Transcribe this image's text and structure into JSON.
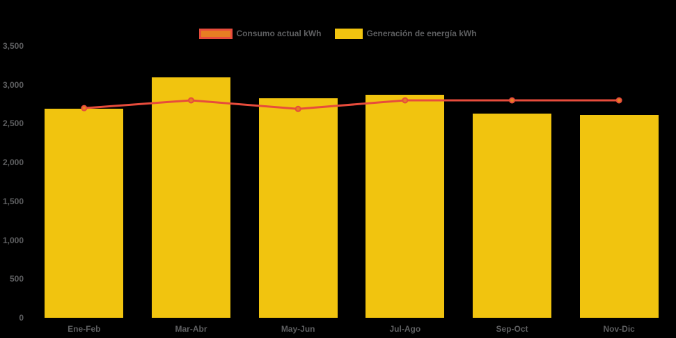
{
  "colors": {
    "background": "#000000",
    "bar": "#F1C40F",
    "line": "#E74C3C",
    "point_fill": "#E67E22",
    "text": "#5E5F61"
  },
  "legend": {
    "items": [
      {
        "label": "Consumo actual kWh",
        "swatch_fill": "#E67E22",
        "swatch_border": "#E74C3C"
      },
      {
        "label": "Generación de energía kWh",
        "swatch_fill": "#F1C40F",
        "swatch_border": "#F1C40F"
      }
    ]
  },
  "chart_data": {
    "type": "bar",
    "title": "",
    "xlabel": "",
    "ylabel": "",
    "categories": [
      "Ene-Feb",
      "Mar-Abr",
      "May-Jun",
      "Jul-Ago",
      "Sep-Oct",
      "Nov-Dic"
    ],
    "series": [
      {
        "name": "Consumo actual kWh",
        "type": "line",
        "color": "#E74C3C",
        "point_color": "#E67E22",
        "values": [
          2700,
          2800,
          2690,
          2800,
          2800,
          2800
        ]
      },
      {
        "name": "Generación de energía kWh",
        "type": "bar",
        "color": "#F1C40F",
        "values": [
          2690,
          3100,
          2830,
          2870,
          2630,
          2610
        ]
      }
    ],
    "y_ticks": [
      0,
      500,
      1000,
      1500,
      2000,
      2500,
      3000,
      3500
    ],
    "y_tick_labels": [
      "0",
      "500",
      "1,000",
      "1,500",
      "2,000",
      "2,500",
      "3,000",
      "3,500"
    ],
    "ylim": [
      0,
      3500
    ],
    "grid": false,
    "legend_position": "top",
    "background": "#000000"
  }
}
